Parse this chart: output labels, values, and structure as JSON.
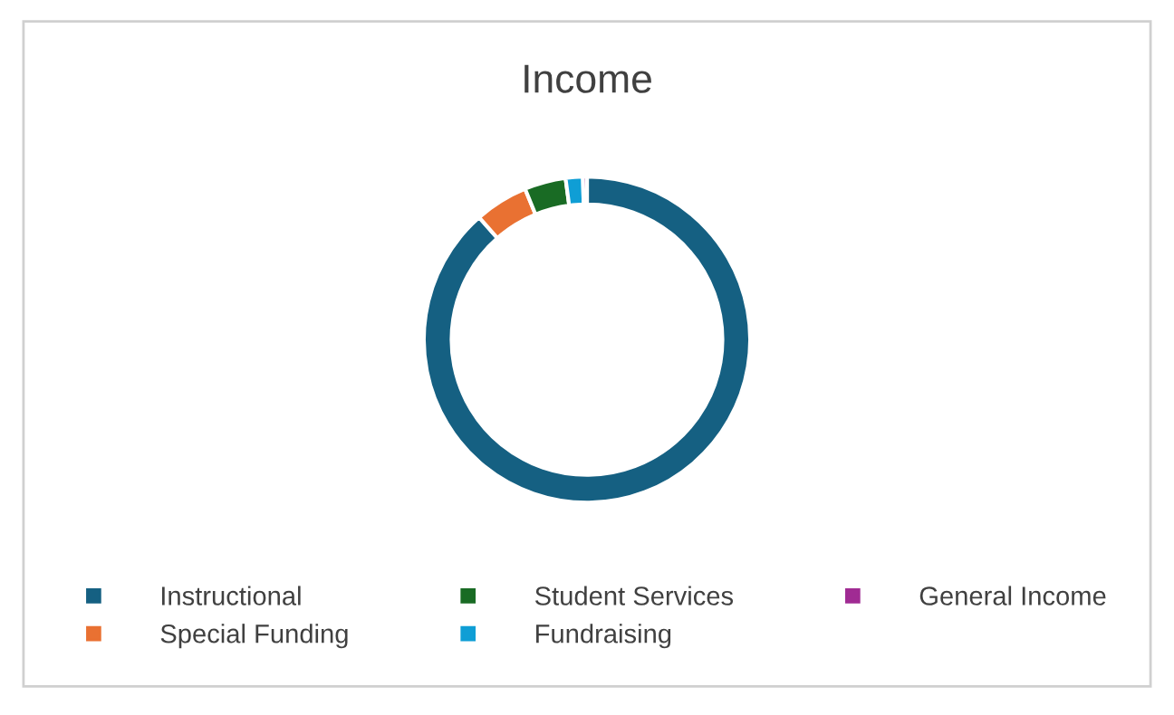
{
  "chart_data": {
    "type": "donut",
    "title": "Income",
    "categories": [
      "Instructional",
      "Special Funding",
      "Student Services",
      "Fundraising",
      "General Income"
    ],
    "values": [
      88.5,
      5.3,
      4.1,
      1.7,
      0.4
    ],
    "colors": [
      "#156082",
      "#e97132",
      "#196b24",
      "#0f9ed5",
      "#a02b93"
    ],
    "legend": "bottom"
  }
}
